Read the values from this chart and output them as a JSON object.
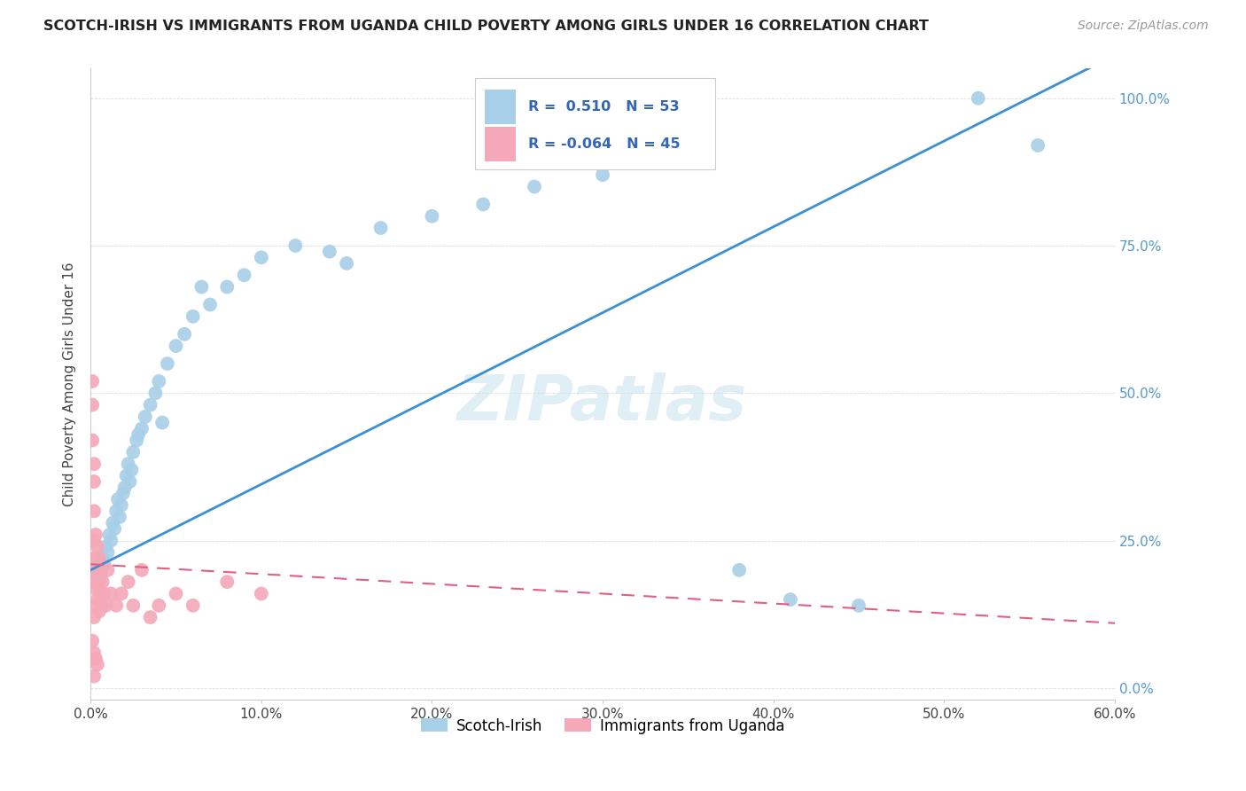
{
  "title": "SCOTCH-IRISH VS IMMIGRANTS FROM UGANDA CHILD POVERTY AMONG GIRLS UNDER 16 CORRELATION CHART",
  "source": "Source: ZipAtlas.com",
  "ylabel": "Child Poverty Among Girls Under 16",
  "xlim": [
    0,
    0.6
  ],
  "ylim": [
    -0.02,
    1.05
  ],
  "xtick_vals": [
    0.0,
    0.1,
    0.2,
    0.3,
    0.4,
    0.5,
    0.6
  ],
  "xtick_labels": [
    "0.0%",
    "10.0%",
    "20.0%",
    "30.0%",
    "40.0%",
    "50.0%",
    "60.0%"
  ],
  "ytick_vals": [
    0.0,
    0.25,
    0.5,
    0.75,
    1.0
  ],
  "ytick_labels": [
    "0.0%",
    "25.0%",
    "50.0%",
    "75.0%",
    "100.0%"
  ],
  "legend_r1": "R =  0.510",
  "legend_n1": "N = 53",
  "legend_r2": "R = -0.064",
  "legend_n2": "N = 45",
  "watermark": "ZIPatlas",
  "blue_color": "#a8cfe8",
  "pink_color": "#f4a8b8",
  "blue_line_color": "#3b8fd4",
  "pink_line_color": "#e06080",
  "background_color": "#ffffff",
  "grid_color": "#dddddd",
  "title_color": "#222222",
  "source_color": "#999999",
  "right_tick_color": "#5599cc",
  "legend_text_color": "#3366bb",
  "blue_scatter_x": [
    0.005,
    0.007,
    0.008,
    0.009,
    0.01,
    0.011,
    0.012,
    0.013,
    0.014,
    0.015,
    0.016,
    0.017,
    0.018,
    0.019,
    0.02,
    0.021,
    0.022,
    0.023,
    0.025,
    0.027,
    0.03,
    0.032,
    0.035,
    0.038,
    0.04,
    0.045,
    0.05,
    0.055,
    0.06,
    0.07,
    0.08,
    0.09,
    0.1,
    0.12,
    0.15,
    0.17,
    0.2,
    0.23,
    0.26,
    0.3,
    0.35,
    0.38,
    0.41,
    0.45,
    0.52,
    0.555,
    0.003,
    0.006,
    0.024,
    0.028,
    0.042,
    0.065,
    0.14
  ],
  "blue_scatter_y": [
    0.2,
    0.22,
    0.21,
    0.24,
    0.23,
    0.26,
    0.25,
    0.28,
    0.27,
    0.3,
    0.32,
    0.29,
    0.31,
    0.33,
    0.34,
    0.36,
    0.38,
    0.35,
    0.4,
    0.42,
    0.44,
    0.46,
    0.48,
    0.5,
    0.52,
    0.55,
    0.58,
    0.6,
    0.63,
    0.65,
    0.68,
    0.7,
    0.73,
    0.75,
    0.72,
    0.78,
    0.8,
    0.82,
    0.85,
    0.87,
    0.9,
    0.2,
    0.15,
    0.14,
    1.0,
    0.92,
    0.18,
    0.19,
    0.37,
    0.43,
    0.45,
    0.68,
    0.74
  ],
  "pink_scatter_x": [
    0.001,
    0.001,
    0.001,
    0.002,
    0.002,
    0.002,
    0.002,
    0.002,
    0.002,
    0.002,
    0.002,
    0.003,
    0.003,
    0.003,
    0.003,
    0.004,
    0.004,
    0.004,
    0.005,
    0.005,
    0.005,
    0.006,
    0.006,
    0.007,
    0.007,
    0.008,
    0.009,
    0.01,
    0.012,
    0.015,
    0.018,
    0.022,
    0.025,
    0.03,
    0.035,
    0.04,
    0.05,
    0.06,
    0.08,
    0.1,
    0.001,
    0.002,
    0.003,
    0.004,
    0.002
  ],
  "pink_scatter_y": [
    0.52,
    0.48,
    0.42,
    0.38,
    0.35,
    0.3,
    0.25,
    0.22,
    0.2,
    0.17,
    0.12,
    0.26,
    0.22,
    0.18,
    0.14,
    0.24,
    0.2,
    0.15,
    0.22,
    0.18,
    0.13,
    0.2,
    0.16,
    0.18,
    0.14,
    0.16,
    0.14,
    0.2,
    0.16,
    0.14,
    0.16,
    0.18,
    0.14,
    0.2,
    0.12,
    0.14,
    0.16,
    0.14,
    0.18,
    0.16,
    0.08,
    0.06,
    0.05,
    0.04,
    0.02
  ]
}
